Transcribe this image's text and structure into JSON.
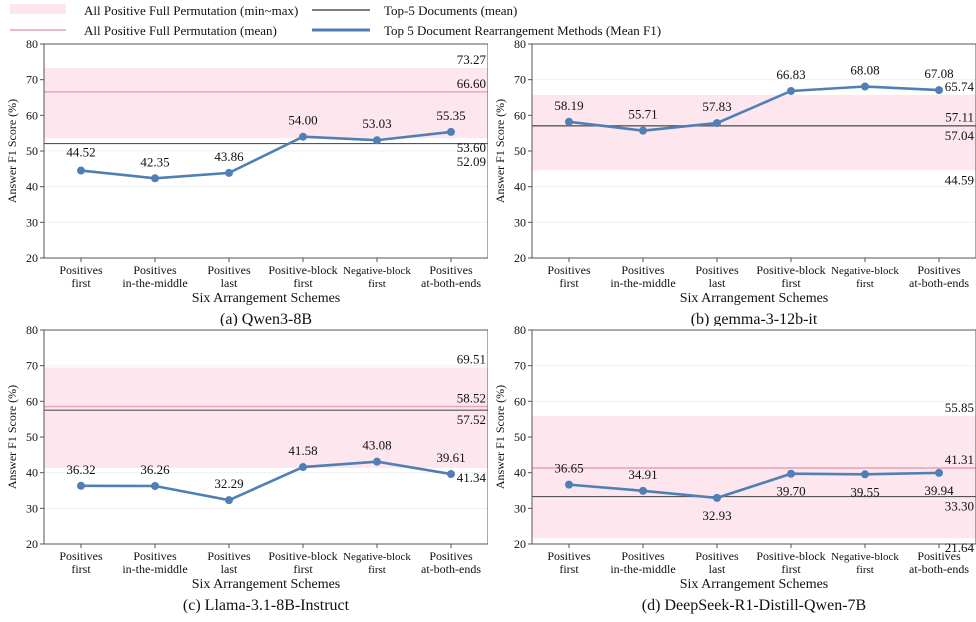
{
  "legend": {
    "range_label": "All Positive Full Permutation (min~max)",
    "mean_label": "All Positive Full Permutation (mean)",
    "top5_label": "Top-5 Documents (mean)",
    "method_label": "Top 5 Document Rearrangement Methods (Mean F1)"
  },
  "colors": {
    "band": "#fde6ee",
    "mean_line": "#e4a3b6",
    "top5_line": "#555555",
    "series": "#4f7fb5"
  },
  "chart_data": [
    {
      "type": "line",
      "caption": "(a) Qwen3-8B",
      "xlabel": "Six Arrangement Schemes",
      "ylabel": "Answer F1 Score (%)",
      "ylim": [
        20,
        80
      ],
      "yticks": [
        "20",
        "30",
        "40",
        "50",
        "60",
        "70",
        "80"
      ],
      "categories": [
        [
          "Positives",
          "first"
        ],
        [
          "Positives",
          "in-the-middle"
        ],
        [
          "Positives",
          "last"
        ],
        [
          "Positive-block",
          "first"
        ],
        [
          "Negative-block",
          "first"
        ],
        [
          "Positives",
          "at-both-ends"
        ]
      ],
      "series": [
        {
          "values": [
            44.52,
            42.35,
            43.86,
            54.0,
            53.03,
            55.35
          ],
          "labels": [
            "44.52",
            "42.35",
            "43.86",
            "54.00",
            "53.03",
            "55.35"
          ]
        }
      ],
      "full_perm_min": 53.6,
      "full_perm_max": 73.27,
      "full_perm_mean": 66.6,
      "top5_mean": 52.09,
      "ref_labels": {
        "max": "73.27",
        "mean": "66.60",
        "min": "53.60",
        "top5": "52.09"
      }
    },
    {
      "type": "line",
      "caption": "(b) gemma-3-12b-it",
      "xlabel": "Six Arrangement Schemes",
      "ylabel": "Answer F1 Score (%)",
      "ylim": [
        20,
        80
      ],
      "yticks": [
        "20",
        "30",
        "40",
        "50",
        "60",
        "70",
        "80"
      ],
      "categories": [
        [
          "Positives",
          "first"
        ],
        [
          "Positives",
          "in-the-middle"
        ],
        [
          "Positives",
          "last"
        ],
        [
          "Positive-block",
          "first"
        ],
        [
          "Negative-block",
          "first"
        ],
        [
          "Positives",
          "at-both-ends"
        ]
      ],
      "series": [
        {
          "values": [
            58.19,
            55.71,
            57.83,
            66.83,
            68.08,
            67.08
          ],
          "labels": [
            "58.19",
            "55.71",
            "57.83",
            "66.83",
            "68.08",
            "67.08"
          ]
        }
      ],
      "full_perm_min": 44.59,
      "full_perm_max": 65.74,
      "full_perm_mean": 57.11,
      "top5_mean": 57.04,
      "ref_labels": {
        "max": "65.74",
        "mean": "57.11",
        "min": "44.59",
        "top5": "57.04"
      }
    },
    {
      "type": "line",
      "caption": "(c) Llama-3.1-8B-Instruct",
      "xlabel": "Six Arrangement Schemes",
      "ylabel": "Answer F1 Score (%)",
      "ylim": [
        20,
        80
      ],
      "yticks": [
        "20",
        "30",
        "40",
        "50",
        "60",
        "70",
        "80"
      ],
      "categories": [
        [
          "Positives",
          "first"
        ],
        [
          "Positives",
          "in-the-middle"
        ],
        [
          "Positives",
          "last"
        ],
        [
          "Positive-block",
          "first"
        ],
        [
          "Negative-block",
          "first"
        ],
        [
          "Positives",
          "at-both-ends"
        ]
      ],
      "series": [
        {
          "values": [
            36.32,
            36.26,
            32.29,
            41.58,
            43.08,
            39.61
          ],
          "labels": [
            "36.32",
            "36.26",
            "32.29",
            "41.58",
            "43.08",
            "39.61"
          ]
        }
      ],
      "full_perm_min": 41.34,
      "full_perm_max": 69.51,
      "full_perm_mean": 58.52,
      "top5_mean": 57.52,
      "ref_labels": {
        "max": "69.51",
        "mean": "58.52",
        "min": "41.34",
        "top5": "57.52"
      }
    },
    {
      "type": "line",
      "caption": "(d) DeepSeek-R1-Distill-Qwen-7B",
      "xlabel": "Six Arrangement Schemes",
      "ylabel": "Answer F1 Score (%)",
      "ylim": [
        20,
        80
      ],
      "yticks": [
        "20",
        "30",
        "40",
        "50",
        "60",
        "70",
        "80"
      ],
      "categories": [
        [
          "Positives",
          "first"
        ],
        [
          "Positives",
          "in-the-middle"
        ],
        [
          "Positives",
          "last"
        ],
        [
          "Positive-block",
          "first"
        ],
        [
          "Negative-block",
          "first"
        ],
        [
          "Positives",
          "at-both-ends"
        ]
      ],
      "series": [
        {
          "values": [
            36.65,
            34.91,
            32.93,
            39.7,
            39.55,
            39.94
          ],
          "labels": [
            "36.65",
            "34.91",
            "32.93",
            "39.70",
            "39.55",
            "39.94"
          ]
        }
      ],
      "full_perm_min": 21.64,
      "full_perm_max": 55.85,
      "full_perm_mean": 41.31,
      "top5_mean": 33.3,
      "ref_labels": {
        "max": "55.85",
        "mean": "41.31",
        "min": "21.64",
        "top5": "33.30"
      }
    }
  ]
}
